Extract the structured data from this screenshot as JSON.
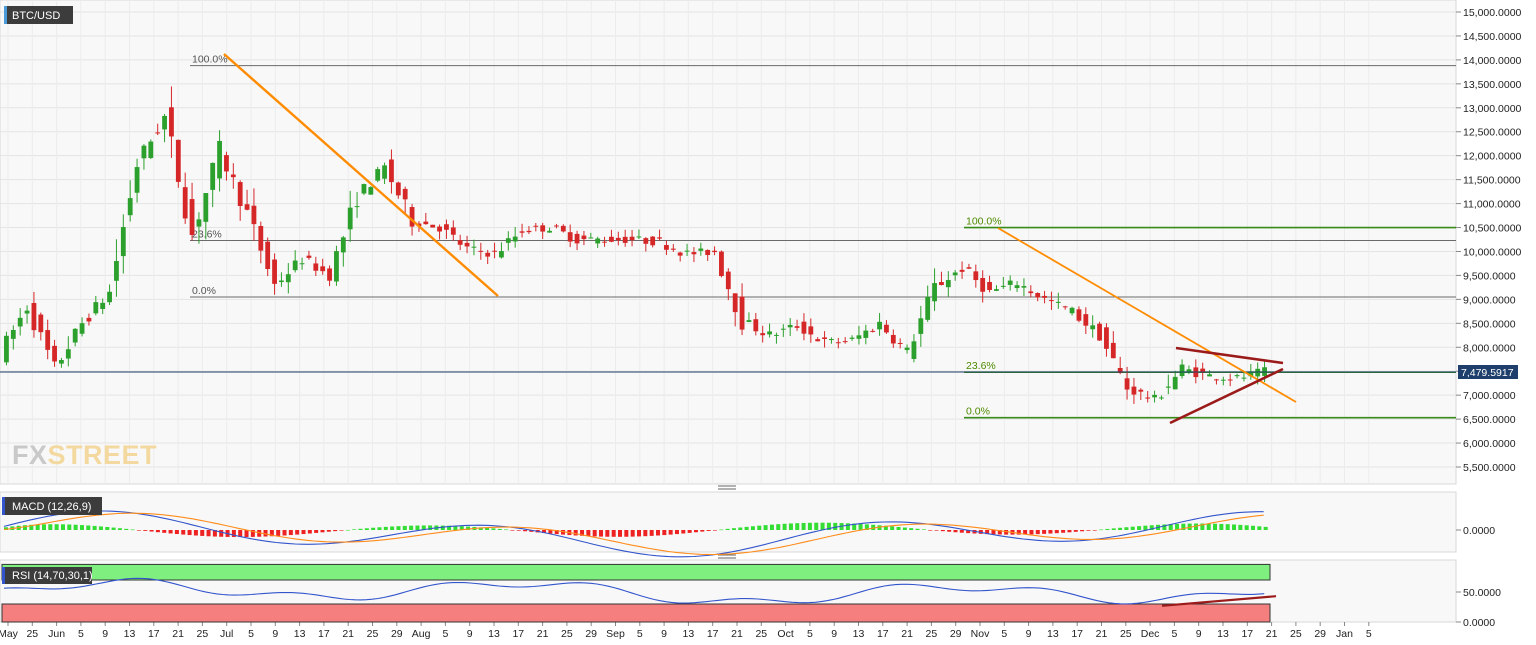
{
  "symbol": "BTC/USD",
  "last_price": "7,479.5917",
  "watermark": "FXSTREET",
  "panes": {
    "macd_label": "MACD (12,26,9)",
    "rsi_label": "RSI (14,70,30,1)"
  },
  "chart_data": [
    {
      "type": "candlestick",
      "title": "BTC/USD",
      "ylim": [
        4900,
        15250
      ],
      "y_ticks": [
        "15,000.0000",
        "14,500.0000",
        "14,000.0000",
        "13,500.0000",
        "13,000.0000",
        "12,500.0000",
        "12,000.0000",
        "11,500.0000",
        "11,000.0000",
        "10,500.0000",
        "10,000.0000",
        "9,500.0000",
        "9,000.0000",
        "8,500.0000",
        "8,000.0000",
        "7,500.0000",
        "7,000.0000",
        "6,500.0000",
        "6,000.0000",
        "5,500.0000"
      ],
      "x_ticks": [
        "May",
        "25",
        "Jun",
        "5",
        "9",
        "13",
        "17",
        "21",
        "25",
        "Jul",
        "5",
        "9",
        "13",
        "17",
        "21",
        "25",
        "29",
        "Aug",
        "5",
        "9",
        "13",
        "17",
        "21",
        "25",
        "29",
        "Sep",
        "5",
        "9",
        "13",
        "17",
        "21",
        "25",
        "Oct",
        "5",
        "9",
        "13",
        "17",
        "21",
        "25",
        "29",
        "Nov",
        "5",
        "9",
        "13",
        "17",
        "21",
        "25",
        "Dec",
        "5",
        "9",
        "13",
        "17",
        "21",
        "25",
        "29",
        "Jan",
        "5"
      ],
      "ohlc_path": [
        [
          7700,
          8000
        ],
        [
          8900,
          8800
        ],
        [
          7500,
          7600
        ],
        [
          8200,
          8800
        ],
        [
          9200,
          9100
        ],
        [
          11200,
          12500
        ],
        [
          13800,
          11800
        ],
        [
          10200,
          10500
        ],
        [
          11800,
          12400
        ],
        [
          10700,
          10900
        ],
        [
          9200,
          9400
        ],
        [
          9700,
          10000
        ],
        [
          9400,
          9600
        ],
        [
          10800,
          11500
        ],
        [
          12100,
          11400
        ],
        [
          11200,
          10100
        ],
        [
          10400,
          10600
        ],
        [
          10100,
          10000
        ],
        [
          9600,
          10300
        ],
        [
          10100,
          10800
        ],
        [
          10400,
          10600
        ],
        [
          10100,
          10400
        ],
        [
          10300,
          10200
        ],
        [
          10100,
          10400
        ],
        [
          10100,
          10300
        ],
        [
          9900,
          10000
        ],
        [
          10100,
          9900
        ],
        [
          8400,
          8700
        ],
        [
          8200,
          8300
        ],
        [
          8500,
          8400
        ],
        [
          8300,
          7900
        ],
        [
          8000,
          8300
        ],
        [
          8700,
          8300
        ],
        [
          8100,
          7700
        ],
        [
          8400,
          10100
        ],
        [
          9400,
          9900
        ],
        [
          9100,
          9200
        ],
        [
          9400,
          9300
        ],
        [
          9100,
          8900
        ],
        [
          8800,
          8700
        ],
        [
          8500,
          8000
        ],
        [
          7300,
          7000
        ],
        [
          6700,
          7100
        ],
        [
          7500,
          7600
        ],
        [
          7500,
          7300
        ],
        [
          7200,
          7500
        ],
        [
          7500,
          7480
        ]
      ],
      "fibonacci_levels": [
        {
          "label": "100.0%",
          "value": 13880
        },
        {
          "label": "23.6%",
          "value": 10230
        },
        {
          "label": "0.0%",
          "value": 9050
        },
        {
          "label": "100.0%",
          "value": 10500
        },
        {
          "label": "23.6%",
          "value": 7480
        },
        {
          "label": "0.0%",
          "value": 6530
        }
      ],
      "last_value": 7479.5917
    },
    {
      "type": "line",
      "title": "MACD (12,26,9)",
      "ylim": [
        -500,
        500
      ],
      "y_ticks": [
        "0.0000"
      ]
    },
    {
      "type": "line",
      "title": "RSI (14,70,30,1)",
      "ylim": [
        0,
        100
      ],
      "y_ticks": [
        "50.0000",
        "0.0000"
      ],
      "zones": {
        "overbought": 70,
        "oversold": 30
      }
    }
  ],
  "colors": {
    "up": "#2ca02c",
    "down": "#d62728",
    "trend_orange": "#ff8c00",
    "triangle": "#9b1b1b",
    "fib_new": "#3a8a1a",
    "fib_old": "#6a6a6a",
    "macd_line": "#3355cc",
    "signal_line": "#ff8c1a",
    "rsi_line": "#3355cc",
    "overbought": "#7ff07f",
    "oversold": "#f57f7f",
    "price_tag": "#1e3f6b"
  }
}
